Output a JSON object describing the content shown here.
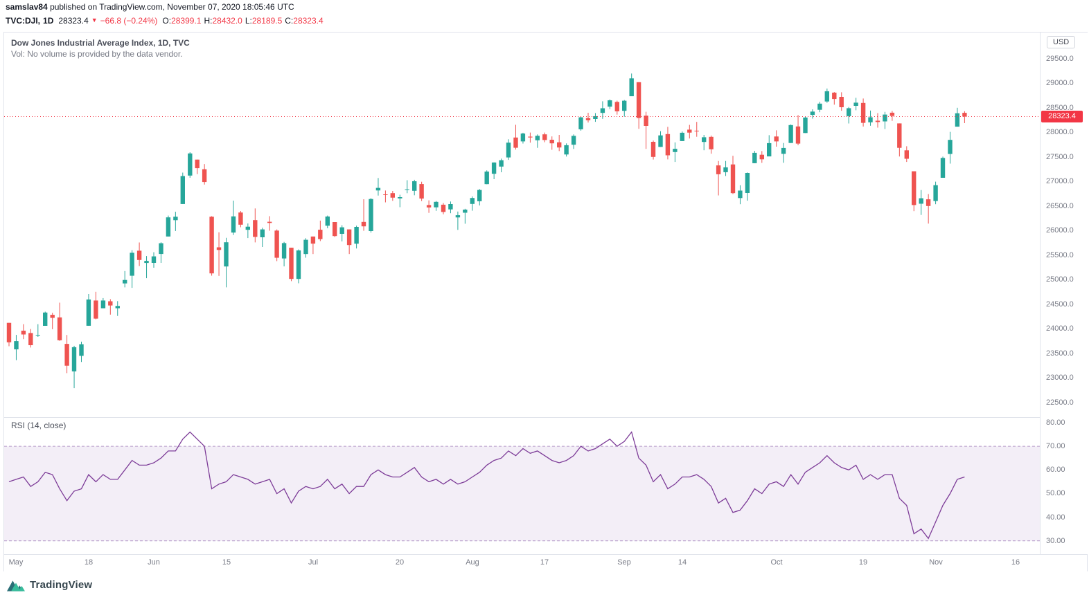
{
  "publisher": {
    "username": "samslav84",
    "text": " published on TradingView.com, November 07, 2020 18:05:46 UTC"
  },
  "symbol_bar": {
    "symbol": "TVC:DJI,",
    "interval": "1D",
    "last": "28323.4",
    "arrow": "▼",
    "change": "−66.8 (−0.24%)",
    "ohlc": [
      {
        "label": "O:",
        "value": "28399.1"
      },
      {
        "label": "H:",
        "value": "28432.0"
      },
      {
        "label": "L:",
        "value": "28189.5"
      },
      {
        "label": "C:",
        "value": "28323.4"
      }
    ]
  },
  "legend": {
    "title": "Dow Jones Industrial Average Index, 1D, TVC",
    "volume_note": "Vol: No volume is provided by the data vendor."
  },
  "rsi_legend": "RSI (14, close)",
  "axis": {
    "currency": "USD",
    "price_tag": "28323.4"
  },
  "footer": {
    "brand": "TradingView"
  },
  "colors": {
    "up": "#26a69a",
    "down": "#ef5350",
    "accent_red": "#f23645",
    "axis_text": "#787b86",
    "rsi_line": "#7d3c98"
  },
  "chart_data": [
    {
      "type": "candlestick",
      "title": "Dow Jones Industrial Average Index",
      "symbol": "TVC:DJI",
      "interval": "1D",
      "exchange": "TVC",
      "currency": "USD",
      "last_price": 28323.4,
      "up_color": "#26a69a",
      "down_color": "#ef5350",
      "last_price_line_color": "#f23645",
      "ylim": [
        22200,
        30035
      ],
      "y_ticks": [
        {
          "label": "29500.0",
          "value": 29500
        },
        {
          "label": "29000.0",
          "value": 29000
        },
        {
          "label": "28500.0",
          "value": 28500
        },
        {
          "label": "28000.0",
          "value": 28000
        },
        {
          "label": "27500.0",
          "value": 27500
        },
        {
          "label": "27000.0",
          "value": 27000
        },
        {
          "label": "26500.0",
          "value": 26500
        },
        {
          "label": "26000.0",
          "value": 26000
        },
        {
          "label": "25500.0",
          "value": 25500
        },
        {
          "label": "25000.0",
          "value": 25000
        },
        {
          "label": "24500.0",
          "value": 24500
        },
        {
          "label": "24000.0",
          "value": 24000
        },
        {
          "label": "23500.0",
          "value": 23500
        },
        {
          "label": "23000.0",
          "value": 23000
        },
        {
          "label": "22500.0",
          "value": 22500
        }
      ],
      "x_ticks": [
        {
          "label": "May",
          "index": 1
        },
        {
          "label": "18",
          "index": 11
        },
        {
          "label": "Jun",
          "index": 20
        },
        {
          "label": "15",
          "index": 30
        },
        {
          "label": "Jul",
          "index": 42
        },
        {
          "label": "20",
          "index": 54
        },
        {
          "label": "Aug",
          "index": 64
        },
        {
          "label": "17",
          "index": 74
        },
        {
          "label": "Sep",
          "index": 85
        },
        {
          "label": "14",
          "index": 93
        },
        {
          "label": "Oct",
          "index": 106
        },
        {
          "label": "19",
          "index": 118
        },
        {
          "label": "Nov",
          "index": 128
        },
        {
          "label": "16",
          "index": 139
        }
      ],
      "ohlc_order": [
        "open",
        "high",
        "low",
        "close"
      ],
      "candles": [
        [
          24120,
          24120,
          23645,
          23724
        ],
        [
          23581,
          23875,
          23361,
          23749
        ],
        [
          23961,
          24094,
          23790,
          23883
        ],
        [
          23913,
          23995,
          23617,
          23665
        ],
        [
          23865,
          24094,
          23834,
          23876
        ],
        [
          24060,
          24349,
          24060,
          24331
        ],
        [
          24284,
          24325,
          23991,
          24222
        ],
        [
          24232,
          24532,
          23754,
          23765
        ],
        [
          23693,
          23874,
          23096,
          23248
        ],
        [
          23133,
          23653,
          22790,
          23625
        ],
        [
          23448,
          23738,
          23323,
          23685
        ],
        [
          24062,
          24708,
          24062,
          24597
        ],
        [
          24576,
          24753,
          24192,
          24207
        ],
        [
          24418,
          24625,
          24418,
          24576
        ],
        [
          24560,
          24602,
          24289,
          24474
        ],
        [
          24419,
          24563,
          24261,
          24465
        ],
        [
          24924,
          25176,
          24843,
          24995
        ],
        [
          25080,
          25601,
          24834,
          25548
        ],
        [
          25590,
          25758,
          25277,
          25401
        ],
        [
          25341,
          25482,
          25031,
          25383
        ],
        [
          25343,
          25559,
          25244,
          25475
        ],
        [
          25524,
          25763,
          25342,
          25743
        ],
        [
          25879,
          26306,
          25879,
          26270
        ],
        [
          26212,
          26384,
          25992,
          26282
        ],
        [
          26541,
          27181,
          26541,
          27111
        ],
        [
          27121,
          27596,
          27077,
          27572
        ],
        [
          27447,
          27447,
          27151,
          27272
        ],
        [
          27251,
          27355,
          26938,
          26990
        ],
        [
          26282,
          26294,
          25082,
          25128
        ],
        [
          25659,
          25965,
          25078,
          25606
        ],
        [
          25270,
          25852,
          24843,
          25763
        ],
        [
          25960,
          26611,
          25910,
          26290
        ],
        [
          26368,
          26400,
          26068,
          26120
        ],
        [
          26016,
          26146,
          25848,
          26080
        ],
        [
          26213,
          26451,
          25759,
          25871
        ],
        [
          25865,
          26059,
          25667,
          26025
        ],
        [
          26180,
          26294,
          25998,
          26156
        ],
        [
          26000,
          26025,
          25378,
          25446
        ],
        [
          25433,
          25769,
          25270,
          25746
        ],
        [
          25651,
          25651,
          24971,
          25016
        ],
        [
          25015,
          25617,
          24927,
          25596
        ],
        [
          25523,
          25845,
          25448,
          25813
        ],
        [
          25880,
          25880,
          25523,
          25735
        ],
        [
          26018,
          26204,
          25787,
          25827
        ],
        [
          26100,
          26306,
          26047,
          26287
        ],
        [
          26174,
          26174,
          25868,
          25890
        ],
        [
          25935,
          26109,
          25780,
          26067
        ],
        [
          26025,
          26025,
          25523,
          25706
        ],
        [
          25732,
          26101,
          25636,
          26075
        ],
        [
          26176,
          26639,
          25996,
          26086
        ],
        [
          25990,
          26661,
          25960,
          26643
        ],
        [
          26818,
          27071,
          26713,
          26870
        ],
        [
          26737,
          26816,
          26575,
          26735
        ],
        [
          26763,
          26808,
          26606,
          26672
        ],
        [
          26655,
          26731,
          26477,
          26681
        ],
        [
          26827,
          27027,
          26762,
          26840
        ],
        [
          26811,
          27035,
          26719,
          27005
        ],
        [
          26947,
          26995,
          26602,
          26652
        ],
        [
          26520,
          26617,
          26361,
          26470
        ],
        [
          26474,
          26604,
          26402,
          26585
        ],
        [
          26527,
          26562,
          26331,
          26379
        ],
        [
          26431,
          26593,
          26354,
          26540
        ],
        [
          26268,
          26388,
          26014,
          26313
        ],
        [
          26364,
          26445,
          26140,
          26428
        ],
        [
          26543,
          26695,
          26405,
          26664
        ],
        [
          26598,
          26848,
          26512,
          26828
        ],
        [
          26945,
          27226,
          26945,
          27202
        ],
        [
          27158,
          27390,
          27048,
          27387
        ],
        [
          27304,
          27466,
          27189,
          27433
        ],
        [
          27490,
          27860,
          27441,
          27791
        ],
        [
          27896,
          28155,
          27650,
          27687
        ],
        [
          27816,
          27993,
          27773,
          27977
        ],
        [
          27914,
          27998,
          27792,
          27897
        ],
        [
          27839,
          27959,
          27686,
          27931
        ],
        [
          27960,
          27998,
          27800,
          27844
        ],
        [
          27851,
          27919,
          27646,
          27778
        ],
        [
          27798,
          27949,
          27620,
          27693
        ],
        [
          27551,
          27776,
          27509,
          27740
        ],
        [
          27750,
          27959,
          27664,
          27930
        ],
        [
          28064,
          28326,
          28035,
          28308
        ],
        [
          28292,
          28400,
          28202,
          28248
        ],
        [
          28274,
          28394,
          28216,
          28332
        ],
        [
          28398,
          28634,
          28276,
          28492
        ],
        [
          28525,
          28672,
          28473,
          28654
        ],
        [
          28622,
          28647,
          28363,
          28430
        ],
        [
          28439,
          28660,
          28320,
          28645
        ],
        [
          28738,
          29199,
          28738,
          29101
        ],
        [
          29023,
          29023,
          28074,
          28293
        ],
        [
          28341,
          28420,
          27665,
          28133
        ],
        [
          27808,
          27834,
          27448,
          27501
        ],
        [
          27704,
          28025,
          27704,
          27940
        ],
        [
          27967,
          28113,
          27450,
          27535
        ],
        [
          27600,
          27797,
          27398,
          27666
        ],
        [
          27824,
          28019,
          27824,
          27993
        ],
        [
          28057,
          28154,
          27876,
          27996
        ],
        [
          28035,
          28214,
          27912,
          28032
        ],
        [
          27806,
          27949,
          27636,
          27902
        ],
        [
          27910,
          27936,
          27566,
          27657
        ],
        [
          27328,
          27418,
          26716,
          27148
        ],
        [
          27189,
          27418,
          27113,
          27288
        ],
        [
          27348,
          27523,
          26745,
          26763
        ],
        [
          26663,
          26923,
          26537,
          26815
        ],
        [
          26766,
          27184,
          26609,
          27174
        ],
        [
          27372,
          27624,
          27372,
          27584
        ],
        [
          27545,
          27620,
          27380,
          27452
        ],
        [
          27512,
          27944,
          27512,
          27782
        ],
        [
          27917,
          28042,
          27710,
          27817
        ],
        [
          27563,
          27784,
          27382,
          27683
        ],
        [
          27784,
          28162,
          27784,
          28149
        ],
        [
          28122,
          28354,
          27740,
          27773
        ],
        [
          27987,
          28320,
          27987,
          28303
        ],
        [
          28357,
          28471,
          28280,
          28425
        ],
        [
          28462,
          28623,
          28412,
          28587
        ],
        [
          28630,
          28893,
          28603,
          28838
        ],
        [
          28810,
          28822,
          28565,
          28680
        ],
        [
          28725,
          28817,
          28441,
          28514
        ],
        [
          28332,
          28518,
          28182,
          28494
        ],
        [
          28541,
          28705,
          28451,
          28606
        ],
        [
          28601,
          28691,
          28120,
          28195
        ],
        [
          28206,
          28445,
          28136,
          28309
        ],
        [
          28238,
          28394,
          28098,
          28211
        ],
        [
          28225,
          28418,
          28069,
          28364
        ],
        [
          28402,
          28438,
          28236,
          28336
        ],
        [
          28183,
          28183,
          27510,
          27685
        ],
        [
          27635,
          27718,
          27398,
          27463
        ],
        [
          27208,
          27208,
          26396,
          26520
        ],
        [
          26548,
          26827,
          26319,
          26659
        ],
        [
          26638,
          26744,
          26143,
          26502
        ],
        [
          26603,
          26997,
          26538,
          26925
        ],
        [
          27076,
          27507,
          27076,
          27480
        ],
        [
          27561,
          28011,
          27364,
          27848
        ],
        [
          28117,
          28502,
          28117,
          28390
        ],
        [
          28399.1,
          28432.0,
          28189.5,
          28323.4
        ]
      ]
    },
    {
      "type": "line",
      "name": "RSI (14, close)",
      "line_color": "#7d3c98",
      "band": [
        30,
        70
      ],
      "band_fill": "rgba(136,86,179,0.10)",
      "band_line_color": "#b69ac9",
      "ylim": [
        24.4,
        82.3
      ],
      "y_ticks": [
        {
          "label": "80.00",
          "value": 80
        },
        {
          "label": "70.00",
          "value": 70
        },
        {
          "label": "60.00",
          "value": 60
        },
        {
          "label": "50.00",
          "value": 50
        },
        {
          "label": "40.00",
          "value": 40
        },
        {
          "label": "30.00",
          "value": 30
        }
      ],
      "values": [
        55,
        56,
        57,
        53,
        55,
        59,
        58,
        52,
        47,
        51,
        52,
        58,
        55,
        58,
        56,
        56,
        60,
        64,
        62,
        62,
        63,
        65,
        68,
        68,
        73,
        76,
        73,
        70,
        52,
        54,
        55,
        58,
        57,
        56,
        54,
        55,
        56,
        50,
        52,
        46,
        51,
        53,
        52,
        53,
        56,
        52,
        54,
        50,
        53,
        53,
        58,
        60,
        58,
        57,
        57,
        59,
        61,
        57,
        55,
        56,
        54,
        56,
        54,
        55,
        57,
        59,
        62,
        64,
        65,
        68,
        66,
        69,
        67,
        68,
        66,
        64,
        63,
        64,
        66,
        70,
        68,
        69,
        71,
        73,
        70,
        72,
        76,
        65,
        62,
        55,
        58,
        52,
        54,
        57,
        57,
        58,
        56,
        53,
        46,
        48,
        42,
        43,
        47,
        52,
        50,
        54,
        55,
        53,
        58,
        54,
        59,
        61,
        63,
        66,
        63,
        61,
        60,
        62,
        56,
        58,
        56,
        58,
        58,
        48,
        45,
        33,
        35,
        31,
        38,
        45,
        50,
        56,
        57
      ]
    }
  ]
}
